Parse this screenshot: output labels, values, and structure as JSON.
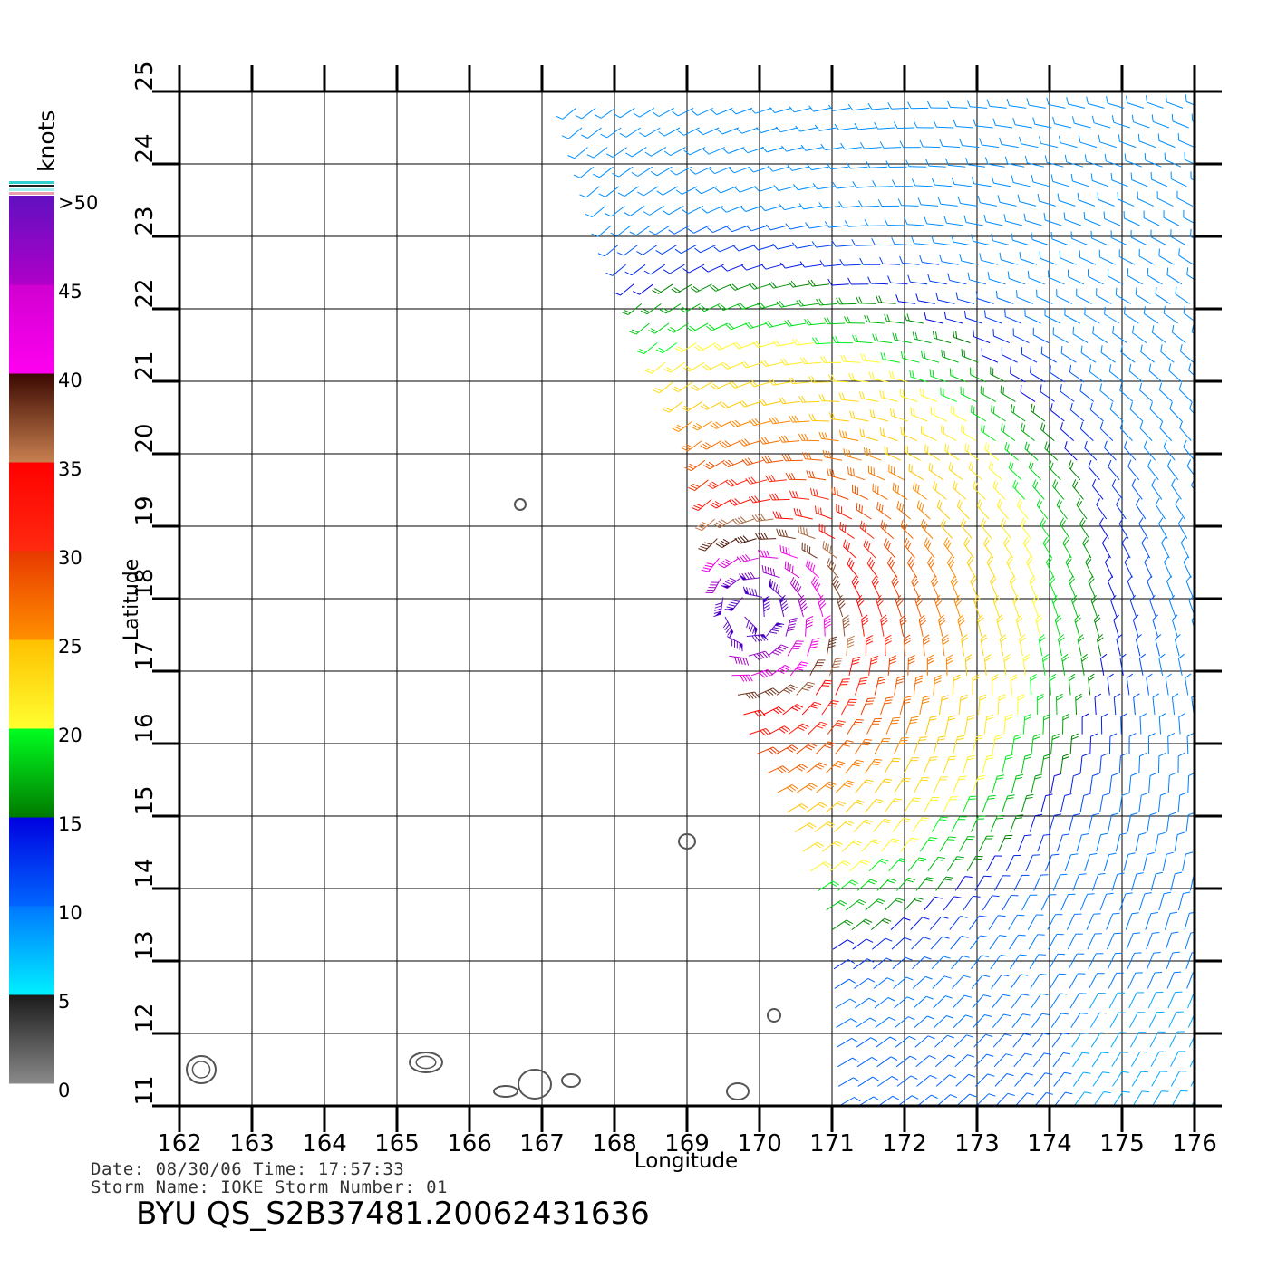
{
  "chart_data": {
    "type": "wind-barb-map",
    "xlabel": "Longitude",
    "ylabel": "Latitude",
    "xlim": [
      162,
      176
    ],
    "ylim": [
      11,
      25
    ],
    "x_ticks": [
      "162",
      "163",
      "164",
      "165",
      "166",
      "167",
      "168",
      "169",
      "170",
      "171",
      "172",
      "173",
      "174",
      "175",
      "176"
    ],
    "y_ticks": [
      "11",
      "12",
      "13",
      "14",
      "15",
      "16",
      "17",
      "18",
      "19",
      "20",
      "21",
      "22",
      "23",
      "24",
      "25"
    ],
    "grid": true,
    "storm_center": {
      "lon": 169.9,
      "lat": 17.8
    },
    "swath_west_edge": [
      [
        167.4,
        25
      ],
      [
        168.0,
        23
      ],
      [
        168.4,
        22
      ],
      [
        168.8,
        21
      ],
      [
        169.2,
        20.2
      ],
      [
        169.4,
        19
      ],
      [
        169.5,
        18
      ],
      [
        169.6,
        17
      ],
      [
        169.9,
        16
      ],
      [
        170.4,
        15
      ],
      [
        171.0,
        13.5
      ],
      [
        171.1,
        11
      ]
    ],
    "islands": [
      {
        "lon": 162.3,
        "lat": 11.5
      },
      {
        "lon": 165.4,
        "lat": 11.6
      },
      {
        "lon": 166.7,
        "lat": 19.3
      },
      {
        "lon": 166.5,
        "lat": 11.2
      },
      {
        "lon": 166.9,
        "lat": 11.3
      },
      {
        "lon": 167.4,
        "lat": 11.35
      },
      {
        "lon": 169.0,
        "lat": 14.65
      },
      {
        "lon": 169.7,
        "lat": 11.2
      },
      {
        "lon": 170.2,
        "lat": 12.25
      }
    ],
    "legend": {
      "title": "knots",
      "labels": [
        ">50",
        "45",
        "40",
        "35",
        "30",
        "25",
        "20",
        "15",
        "10",
        "5",
        "0"
      ],
      "bins": [
        {
          "from": 0,
          "to": 5,
          "colors": [
            "#8a8a8a",
            "#1a1a1a"
          ]
        },
        {
          "from": 5,
          "to": 10,
          "colors": [
            "#00f0ff",
            "#0077ff"
          ]
        },
        {
          "from": 10,
          "to": 15,
          "colors": [
            "#0066ff",
            "#0000e0"
          ]
        },
        {
          "from": 15,
          "to": 20,
          "colors": [
            "#007a00",
            "#00ff20"
          ]
        },
        {
          "from": 20,
          "to": 25,
          "colors": [
            "#ffff30",
            "#ffc000"
          ]
        },
        {
          "from": 25,
          "to": 30,
          "colors": [
            "#ff9000",
            "#e83800"
          ]
        },
        {
          "from": 30,
          "to": 35,
          "colors": [
            "#ff2a10",
            "#ff0000"
          ]
        },
        {
          "from": 35,
          "to": 40,
          "colors": [
            "#c88050",
            "#3a0800"
          ]
        },
        {
          "from": 40,
          "to": 45,
          "colors": [
            "#ff00f0",
            "#d000d0"
          ]
        },
        {
          "from": 45,
          "to": 50,
          "colors": [
            "#b000c8",
            "#6010c0"
          ]
        }
      ]
    }
  },
  "footer": {
    "date_line": "Date: 08/30/06   Time: 17:57:33",
    "storm_line": "Storm Name: IOKE   Storm Number: 01",
    "file_id": "BYU QS_S2B37481.20062431636"
  }
}
